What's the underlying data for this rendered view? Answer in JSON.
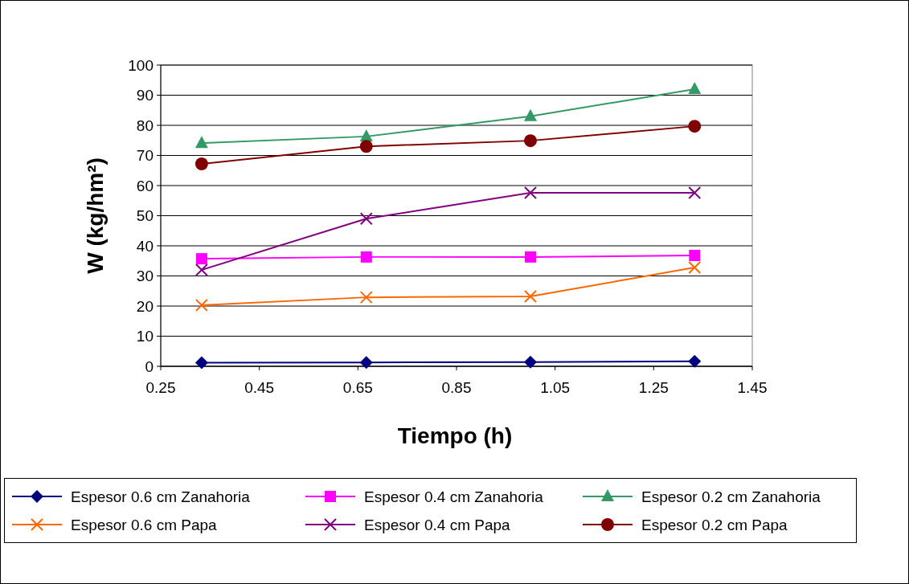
{
  "chart_data": {
    "type": "line",
    "xlabel": "Tiempo (h)",
    "ylabel": "W (kg/hm²)",
    "x": [
      0.333,
      0.667,
      1.0,
      1.333
    ],
    "xlim": [
      0.25,
      1.45
    ],
    "xticks": [
      {
        "value": 0.25,
        "label": "0.25"
      },
      {
        "value": 0.45,
        "label": "0.45"
      },
      {
        "value": 0.65,
        "label": "0.65"
      },
      {
        "value": 0.85,
        "label": "0.85"
      },
      {
        "value": 1.05,
        "label": "1.05"
      },
      {
        "value": 1.25,
        "label": "1.25"
      },
      {
        "value": 1.45,
        "label": "1.45"
      }
    ],
    "ylim": [
      0,
      100
    ],
    "yticks": [
      0,
      10,
      20,
      30,
      40,
      50,
      60,
      70,
      80,
      90,
      100
    ],
    "grid": "y",
    "legend": "bottom",
    "series": [
      {
        "name": "Espesor 0.6 cm Zanahoria",
        "color": "#000080",
        "marker": "diamond",
        "values": [
          1.2,
          1.3,
          1.4,
          1.7
        ]
      },
      {
        "name": "Espesor 0.4 cm Zanahoria",
        "color": "#ff00ff",
        "marker": "square",
        "values": [
          35.7,
          36.3,
          36.3,
          36.8
        ]
      },
      {
        "name": "Espesor 0.2 cm Zanahoria",
        "color": "#339966",
        "marker": "triangle",
        "values": [
          74.1,
          76.3,
          83,
          92
        ]
      },
      {
        "name": "Espesor 0.6 cm Papa",
        "color": "#ff6600",
        "marker": "cross",
        "values": [
          20.3,
          22.9,
          23.2,
          32.8
        ]
      },
      {
        "name": "Espesor 0.4 cm Papa",
        "color": "#800080",
        "marker": "cross",
        "values": [
          32,
          49,
          57.6,
          57.6
        ]
      },
      {
        "name": "Espesor 0.2 cm Papa",
        "color": "#800000",
        "marker": "circle",
        "values": [
          67.2,
          73,
          74.9,
          79.7
        ]
      }
    ]
  }
}
